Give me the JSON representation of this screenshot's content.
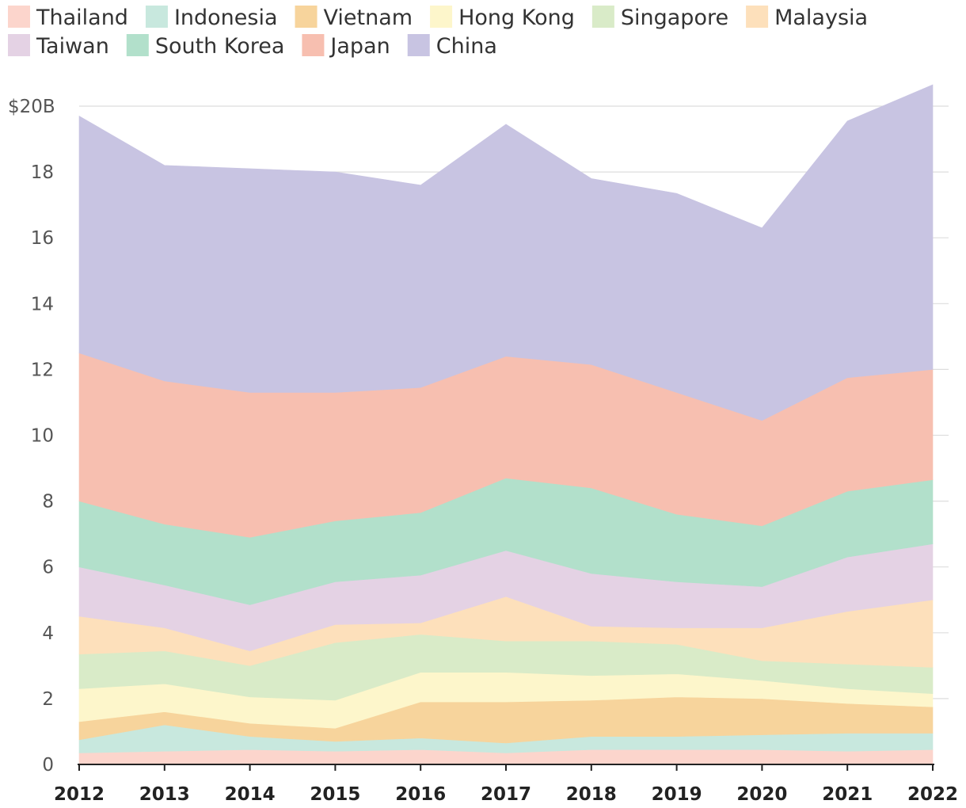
{
  "chart_data": {
    "type": "area",
    "stacked": true,
    "title": "",
    "xlabel": "",
    "ylabel": "",
    "ylim": [
      0,
      20.8
    ],
    "yticks": [
      0,
      2,
      4,
      6,
      8,
      10,
      12,
      14,
      16,
      18,
      20
    ],
    "ytick_labels": [
      "0",
      "2",
      "4",
      "6",
      "8",
      "10",
      "12",
      "14",
      "16",
      "18",
      "$20B"
    ],
    "grid": true,
    "legend_position": "top",
    "x": [
      "2012",
      "2013",
      "2014",
      "2015",
      "2016",
      "2017",
      "2018",
      "2019",
      "2020",
      "2021",
      "2022"
    ],
    "series": [
      {
        "name": "Thailand",
        "color": "#fcd5cc",
        "values": [
          0.35,
          0.4,
          0.45,
          0.4,
          0.45,
          0.35,
          0.45,
          0.45,
          0.45,
          0.4,
          0.45
        ]
      },
      {
        "name": "Indonesia",
        "color": "#c8e8de",
        "values": [
          0.4,
          0.8,
          0.4,
          0.3,
          0.35,
          0.3,
          0.4,
          0.4,
          0.45,
          0.55,
          0.5
        ]
      },
      {
        "name": "Vietnam",
        "color": "#f7d49c",
        "values": [
          0.55,
          0.4,
          0.4,
          0.4,
          1.1,
          1.25,
          1.1,
          1.2,
          1.1,
          0.9,
          0.8
        ]
      },
      {
        "name": "Hong Kong",
        "color": "#fdf6cb",
        "values": [
          1.0,
          0.85,
          0.8,
          0.85,
          0.9,
          0.9,
          0.75,
          0.7,
          0.55,
          0.45,
          0.4
        ]
      },
      {
        "name": "Singapore",
        "color": "#d9ebc8",
        "values": [
          1.05,
          1.0,
          0.95,
          1.75,
          1.15,
          0.95,
          1.05,
          0.9,
          0.6,
          0.75,
          0.8
        ]
      },
      {
        "name": "Malaysia",
        "color": "#fde0bb",
        "values": [
          1.15,
          0.7,
          0.45,
          0.55,
          0.35,
          1.35,
          0.45,
          0.5,
          1.0,
          1.6,
          2.05
        ]
      },
      {
        "name": "Taiwan",
        "color": "#e4d2e4",
        "values": [
          1.5,
          1.3,
          1.4,
          1.3,
          1.45,
          1.4,
          1.6,
          1.4,
          1.25,
          1.65,
          1.7
        ]
      },
      {
        "name": "South Korea",
        "color": "#b2e0cb",
        "values": [
          2.0,
          1.85,
          2.05,
          1.85,
          1.9,
          2.2,
          2.6,
          2.05,
          1.85,
          2.0,
          1.95
        ]
      },
      {
        "name": "Japan",
        "color": "#f7bfb0",
        "values": [
          4.5,
          4.35,
          4.4,
          3.9,
          3.8,
          3.7,
          3.75,
          3.7,
          3.2,
          3.45,
          3.35
        ]
      },
      {
        "name": "China",
        "color": "#c8c4e2",
        "values": [
          7.2,
          6.55,
          6.8,
          6.7,
          6.15,
          7.05,
          5.65,
          6.05,
          5.85,
          7.8,
          8.65
        ]
      }
    ]
  }
}
